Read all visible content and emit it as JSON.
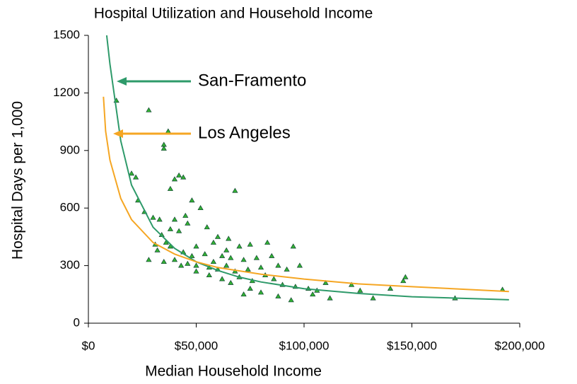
{
  "chart_data": {
    "type": "scatter",
    "title": "Hospital Utilization and Household Income",
    "xlabel": "Median Household Income",
    "ylabel": "Hospital Days per 1,000",
    "xlim": [
      0,
      200000
    ],
    "ylim": [
      0,
      1500
    ],
    "xticks": [
      {
        "value": 0,
        "label": "$0"
      },
      {
        "value": 50000,
        "label": "$50,000"
      },
      {
        "value": 100000,
        "label": "$100,000"
      },
      {
        "value": 150000,
        "label": "$150,000"
      },
      {
        "value": 200000,
        "label": "$200,000"
      }
    ],
    "yticks": [
      0,
      300,
      600,
      900,
      1200,
      1500
    ],
    "grid": false,
    "annotations": [
      {
        "text": "San-Framento",
        "color": "#2e9a6a"
      },
      {
        "text": "Los Angeles",
        "color": "#f5a623"
      }
    ],
    "series": [
      {
        "mode": "markers",
        "color": "#33b233",
        "x": [
          13000,
          28000,
          37000,
          35000,
          35000,
          20000,
          22000,
          42000,
          44000,
          40000,
          38000,
          68000,
          48000,
          23000,
          26000,
          52000,
          45000,
          30000,
          40000,
          33000,
          46000,
          55000,
          42000,
          60000,
          65000,
          36000,
          38000,
          50000,
          58000,
          70000,
          75000,
          83000,
          95000,
          44000,
          48000,
          54000,
          62000,
          66000,
          72000,
          78000,
          85000,
          28000,
          35000,
          43000,
          50000,
          56000,
          60000,
          64000,
          68000,
          74000,
          80000,
          88000,
          92000,
          98000,
          56000,
          62000,
          66000,
          70000,
          76000,
          82000,
          86000,
          90000,
          96000,
          102000,
          106000,
          110000,
          75000,
          72000,
          80000,
          88000,
          94000,
          104000,
          112000,
          122000,
          126000,
          132000,
          140000,
          146000,
          147000,
          170000,
          192000,
          50000,
          58000,
          64000,
          46000,
          40000,
          32000,
          31000,
          34000,
          38000
        ],
        "values": [
          1160,
          1110,
          1000,
          930,
          910,
          780,
          760,
          770,
          760,
          750,
          700,
          690,
          640,
          640,
          580,
          600,
          560,
          550,
          540,
          540,
          520,
          500,
          480,
          450,
          440,
          420,
          400,
          400,
          420,
          400,
          410,
          420,
          400,
          370,
          350,
          360,
          350,
          340,
          330,
          340,
          350,
          330,
          320,
          300,
          300,
          290,
          280,
          300,
          270,
          280,
          290,
          300,
          280,
          300,
          250,
          230,
          210,
          240,
          220,
          250,
          230,
          200,
          190,
          180,
          170,
          210,
          180,
          150,
          160,
          140,
          120,
          150,
          130,
          200,
          170,
          130,
          180,
          220,
          240,
          130,
          175,
          270,
          320,
          380,
          310,
          330,
          380,
          410,
          460,
          490
        ]
      },
      {
        "mode": "lines",
        "color": "#2e9a6a",
        "x": [
          8500,
          10000,
          15000,
          20000,
          30000,
          40000,
          50000,
          60000,
          70000,
          80000,
          100000,
          125000,
          150000,
          195000
        ],
        "values": [
          1500,
          1350,
          950,
          720,
          500,
          390,
          320,
          275,
          240,
          215,
          180,
          155,
          138,
          122
        ]
      },
      {
        "mode": "lines",
        "color": "#f5a623",
        "x": [
          7000,
          8000,
          10000,
          15000,
          20000,
          30000,
          40000,
          50000,
          60000,
          80000,
          100000,
          125000,
          150000,
          195000
        ],
        "values": [
          1180,
          1000,
          850,
          650,
          540,
          420,
          360,
          320,
          290,
          255,
          230,
          205,
          190,
          165
        ]
      }
    ]
  }
}
